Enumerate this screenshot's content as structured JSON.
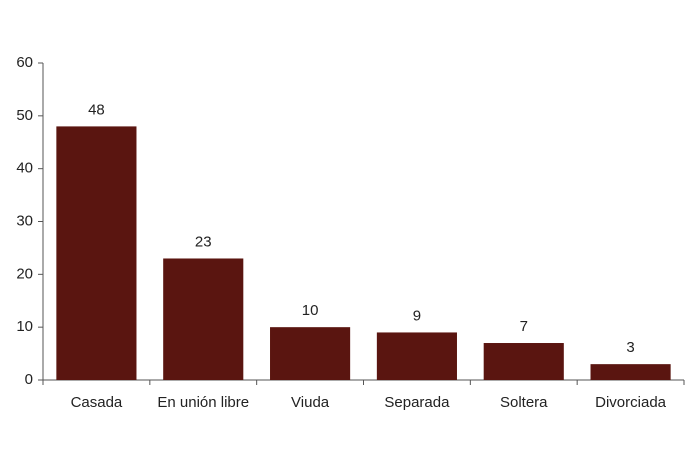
{
  "chart_data": {
    "type": "bar",
    "categories": [
      "Casada",
      "En unión libre",
      "Viuda",
      "Separada",
      "Soltera",
      "Divorciada"
    ],
    "values": [
      48,
      23,
      10,
      9,
      7,
      3
    ],
    "color": "#5a1510",
    "ylim": [
      0,
      60
    ],
    "yticks": [
      0,
      10,
      20,
      30,
      40,
      50,
      60
    ],
    "grid": false,
    "data_labels": true
  }
}
